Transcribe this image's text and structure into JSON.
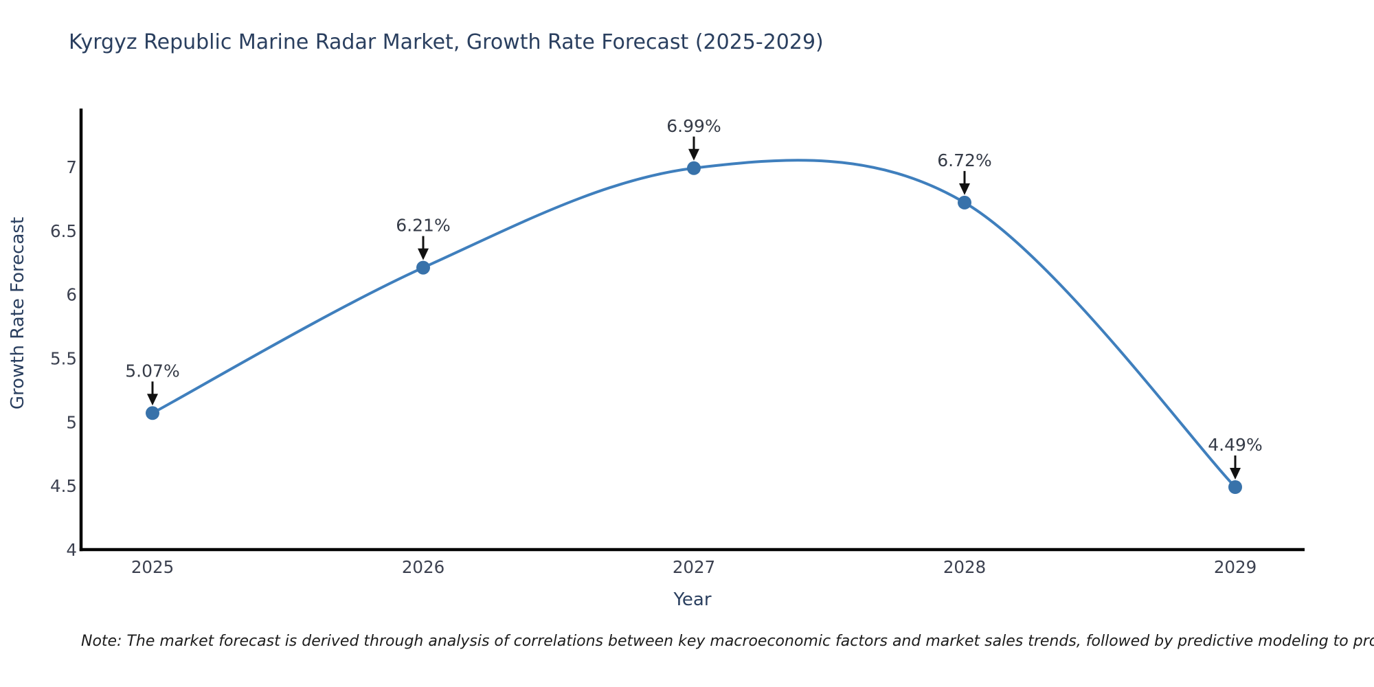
{
  "chart_data": {
    "type": "line",
    "title": "Kyrgyz Republic Marine Radar Market, Growth Rate Forecast (2025-2029)",
    "xlabel": "Year",
    "ylabel": "Growth Rate Forecast",
    "x": [
      "2025",
      "2026",
      "2027",
      "2028",
      "2029"
    ],
    "series": [
      {
        "name": "Growth Rate Forecast",
        "values": [
          5.07,
          6.21,
          6.99,
          6.72,
          4.49
        ]
      }
    ],
    "point_labels": [
      "5.07%",
      "6.21%",
      "6.99%",
      "6.72%",
      "4.49%"
    ],
    "y_ticks": [
      "4",
      "4.5",
      "5",
      "5.5",
      "6",
      "6.5",
      "7"
    ],
    "ylim": [
      4,
      7.45
    ],
    "line_shape": "spline",
    "grid": false,
    "legend": "none",
    "colors": {
      "line": "#3f7fbd",
      "marker": "#3872aa",
      "axis": "#000000",
      "tick_text": "#3c4150",
      "annotation_text": "#353b47",
      "title_text": "#2a3f5f",
      "arrow": "#111111"
    },
    "note": "Note: The market forecast is derived through analysis of correlations between key macroeconomic factors and market sales trends, followed by predictive modeling to project future sales"
  }
}
